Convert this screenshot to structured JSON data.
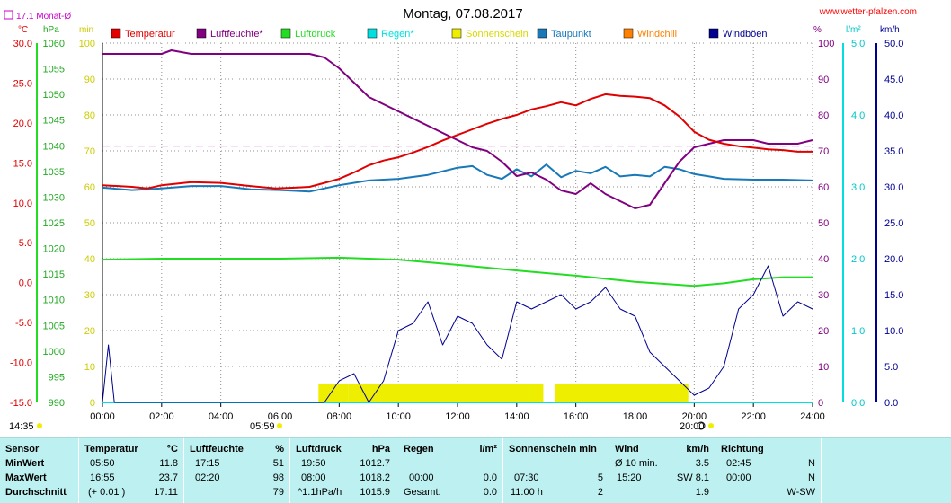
{
  "header": {
    "title": "Montag, 07.08.2017",
    "site": "www.wetter-pfalzen.com",
    "monthly_avg": "17.1 Monat-Ø"
  },
  "colors": {
    "temperatur": "#e00000",
    "luftfeuchte": "#800080",
    "luftdruck": "#22dd22",
    "regen": "#00e0e0",
    "sonnenschein": "#eeee00",
    "taupunkt": "#1878b8",
    "windchill": "#ff8000",
    "windboen": "#000090",
    "grid": "#909090",
    "stats_bg": "#bdf0f0"
  },
  "chart_data": {
    "type": "line",
    "title": "Montag, 07.08.2017",
    "x_label": "",
    "x_ticks": [
      "00:00",
      "02:00",
      "04:00",
      "06:00",
      "08:00",
      "10:00",
      "12:00",
      "14:00",
      "16:00",
      "18:00",
      "20:00",
      "22:00",
      "24:00"
    ],
    "x_range_hours": [
      0,
      24
    ],
    "sunrise": "05:59",
    "sunset": "20:00",
    "left_time_label": "14:35",
    "axes": {
      "temp": {
        "unit": "°C",
        "range": [
          -15,
          30
        ],
        "ticks": [
          "30.0",
          "25.0",
          "20.0",
          "15.0",
          "10.0",
          "5.0",
          "0.0",
          "-5.0",
          "-10.0",
          "-15.0"
        ]
      },
      "pressure": {
        "unit": "hPa",
        "range": [
          990,
          1060
        ],
        "ticks": [
          "1060",
          "1055",
          "1050",
          "1045",
          "1040",
          "1035",
          "1030",
          "1025",
          "1020",
          "1015",
          "1010",
          "1005",
          "1000",
          "995",
          "990"
        ]
      },
      "sun": {
        "unit": "min",
        "range": [
          0,
          100
        ],
        "ticks": [
          "100",
          "90",
          "80",
          "70",
          "60",
          "50",
          "40",
          "30",
          "20",
          "10",
          "0"
        ]
      },
      "humidity": {
        "unit": "%",
        "range": [
          0,
          100
        ],
        "ticks": [
          "100",
          "90",
          "80",
          "70",
          "60",
          "50",
          "40",
          "30",
          "20",
          "10",
          "0"
        ]
      },
      "rain": {
        "unit": "l/m²",
        "range": [
          0,
          5
        ],
        "ticks": [
          "5.0",
          "4.0",
          "3.0",
          "2.0",
          "1.0",
          "0.0"
        ]
      },
      "wind": {
        "unit": "km/h",
        "range": [
          0,
          50
        ],
        "ticks": [
          "50.0",
          "45.0",
          "40.0",
          "35.0",
          "30.0",
          "25.0",
          "20.0",
          "15.0",
          "10.0",
          "5.0",
          "0.0"
        ]
      }
    },
    "reference_line": {
      "axis": "temp",
      "value": 17.1
    },
    "legend": [
      {
        "key": "temperatur",
        "label": "Temperatur"
      },
      {
        "key": "luftfeuchte",
        "label": "Luftfeuchte*"
      },
      {
        "key": "luftdruck",
        "label": "Luftdruck"
      },
      {
        "key": "regen",
        "label": "Regen*"
      },
      {
        "key": "sonnenschein",
        "label": "Sonnenschein"
      },
      {
        "key": "taupunkt",
        "label": "Taupunkt"
      },
      {
        "key": "windchill",
        "label": "Windchill"
      },
      {
        "key": "windboen",
        "label": "Windböen"
      }
    ],
    "series": {
      "temperatur": {
        "axis": "temp",
        "x": [
          0,
          1,
          1.5,
          2,
          3,
          4,
          5,
          5.85,
          6.5,
          7,
          7.5,
          8,
          8.5,
          9,
          9.5,
          10,
          10.5,
          11,
          11.5,
          12,
          12.5,
          13,
          13.5,
          14,
          14.5,
          15,
          15.5,
          16,
          16.5,
          17,
          17.5,
          18,
          18.5,
          19,
          19.5,
          20,
          20.5,
          21,
          21.5,
          22,
          22.5,
          23,
          23.5,
          24
        ],
        "y": [
          12.2,
          12.0,
          11.8,
          12.2,
          12.6,
          12.5,
          12.1,
          11.8,
          11.9,
          12.0,
          12.5,
          13.0,
          13.8,
          14.7,
          15.3,
          15.7,
          16.3,
          17.0,
          17.8,
          18.5,
          19.2,
          19.9,
          20.5,
          21.0,
          21.7,
          22.1,
          22.6,
          22.2,
          23.0,
          23.6,
          23.4,
          23.3,
          23.1,
          22.2,
          20.8,
          18.9,
          17.9,
          17.4,
          17.1,
          16.9,
          16.7,
          16.6,
          16.4,
          16.4
        ]
      },
      "luftfeuchte": {
        "axis": "humidity",
        "x": [
          0,
          1,
          1.5,
          2,
          2.33,
          3,
          4,
          5,
          6,
          7,
          7.5,
          8,
          8.5,
          9,
          9.5,
          10,
          10.5,
          11,
          11.5,
          12,
          12.5,
          13,
          13.5,
          14,
          14.5,
          15,
          15.5,
          16,
          16.5,
          17,
          17.5,
          18,
          18.5,
          19,
          19.5,
          20,
          20.5,
          21,
          21.5,
          22,
          22.5,
          23,
          23.5,
          24
        ],
        "y": [
          97,
          97,
          97,
          97,
          98,
          97,
          97,
          97,
          97,
          97,
          96,
          93,
          89,
          85,
          83,
          81,
          79,
          77,
          75,
          73,
          71,
          70,
          67,
          63,
          64,
          62,
          59,
          58,
          61,
          58,
          56,
          54,
          55,
          61,
          67,
          71,
          72,
          73,
          73,
          73,
          72,
          72,
          72,
          73
        ]
      },
      "luftdruck": {
        "axis": "pressure",
        "x": [
          0,
          2,
          4,
          6,
          8,
          10,
          12,
          14,
          16,
          18,
          20,
          21,
          22,
          23,
          24
        ],
        "y": [
          1017.8,
          1018.0,
          1018.0,
          1018.0,
          1018.2,
          1017.8,
          1016.8,
          1015.7,
          1014.7,
          1013.5,
          1012.7,
          1013.2,
          1014.0,
          1014.4,
          1014.4
        ]
      },
      "taupunkt": {
        "axis": "temp",
        "x": [
          0,
          1,
          2,
          3,
          4,
          5,
          6,
          7,
          8,
          9,
          10,
          11,
          12,
          12.5,
          13,
          13.5,
          14,
          14.5,
          15,
          15.5,
          16,
          16.5,
          17,
          17.5,
          18,
          18.5,
          19,
          19.5,
          20,
          20.5,
          21,
          22,
          23,
          24
        ],
        "y": [
          11.9,
          11.6,
          11.8,
          12.1,
          12.1,
          11.7,
          11.6,
          11.4,
          12.2,
          12.8,
          13.0,
          13.5,
          14.4,
          14.6,
          13.5,
          13.0,
          14.2,
          13.3,
          14.8,
          13.2,
          14.0,
          13.7,
          14.5,
          13.3,
          13.5,
          13.3,
          14.5,
          14.2,
          13.6,
          13.3,
          13.0,
          12.9,
          12.9,
          12.8
        ]
      },
      "windboen": {
        "axis": "wind",
        "x": [
          0,
          0.2,
          0.4,
          1.5,
          2,
          7.5,
          8,
          8.5,
          9,
          9.5,
          10,
          10.5,
          11,
          11.5,
          12,
          12.5,
          13,
          13.5,
          14,
          14.5,
          15,
          15.5,
          16,
          16.5,
          17,
          17.5,
          18,
          18.5,
          19,
          19.5,
          20,
          20.5,
          21,
          21.5,
          22,
          22.5,
          23,
          23.5,
          24
        ],
        "y": [
          0,
          8,
          0,
          0,
          0,
          0,
          3,
          4,
          0,
          3,
          10,
          11,
          14,
          8,
          12,
          11,
          8,
          6,
          14,
          13,
          14,
          15,
          13,
          14,
          16,
          13,
          12,
          7,
          5,
          3,
          1,
          2,
          5,
          13,
          15,
          19,
          12,
          14,
          13
        ]
      },
      "sonnenschein": {
        "axis": "sun",
        "x": [
          0,
          7.3,
          7.3,
          8.3,
          8.3,
          14.9,
          14.9,
          15.3,
          15.3,
          19.8,
          19.8,
          24
        ],
        "y": [
          0,
          0,
          5,
          5,
          5,
          5,
          0,
          0,
          5,
          5,
          0,
          0
        ]
      },
      "regen": {
        "axis": "rain",
        "x": [
          0,
          24
        ],
        "y": [
          0.0,
          0.0
        ]
      }
    }
  },
  "stats": {
    "sensor": {
      "header": "Sensor",
      "rows": [
        "MinWert",
        "MaxWert",
        "Durchschnitt"
      ]
    },
    "temperatur": {
      "header": "Temperatur",
      "unit": "°C",
      "min_time": "05:50",
      "min_val": "11.8",
      "max_time": "16:55",
      "max_val": "23.7",
      "trend": "(+ 0.01 )",
      "avg": "17.11"
    },
    "luftfeuchte": {
      "header": "Luftfeuchte",
      "unit": "%",
      "min_time": "17:15",
      "min_val": "51",
      "max_time": "02:20",
      "max_val": "98",
      "avg": "79"
    },
    "luftdruck": {
      "header": "Luftdruck",
      "unit": "hPa",
      "min_time": "19:50",
      "min_val": "1012.7",
      "max_time": "08:00",
      "max_val": "1018.2",
      "trend": "^1.1hPa/h",
      "avg": "1015.9"
    },
    "regen": {
      "header": "Regen",
      "unit": "l/m²",
      "max_time": "00:00",
      "max_val": "0.0",
      "total_label": "Gesamt:",
      "total": "0.0"
    },
    "sonnenschein": {
      "header": "Sonnenschein min",
      "max_time": "07:30",
      "max_val": "5",
      "total_label": "11:00 h",
      "avg": "2"
    },
    "wind": {
      "header": "Wind",
      "unit": "km/h",
      "min_label": "Ø 10 min.",
      "min_val": "3.5",
      "max_time": "15:20",
      "max_val": "SW 8.1",
      "avg": "1.9"
    },
    "richtung": {
      "header": "Richtung",
      "min_time": "02:45",
      "min_val": "N",
      "max_time": "00:00",
      "max_val": "N",
      "avg": "W-SW"
    }
  }
}
